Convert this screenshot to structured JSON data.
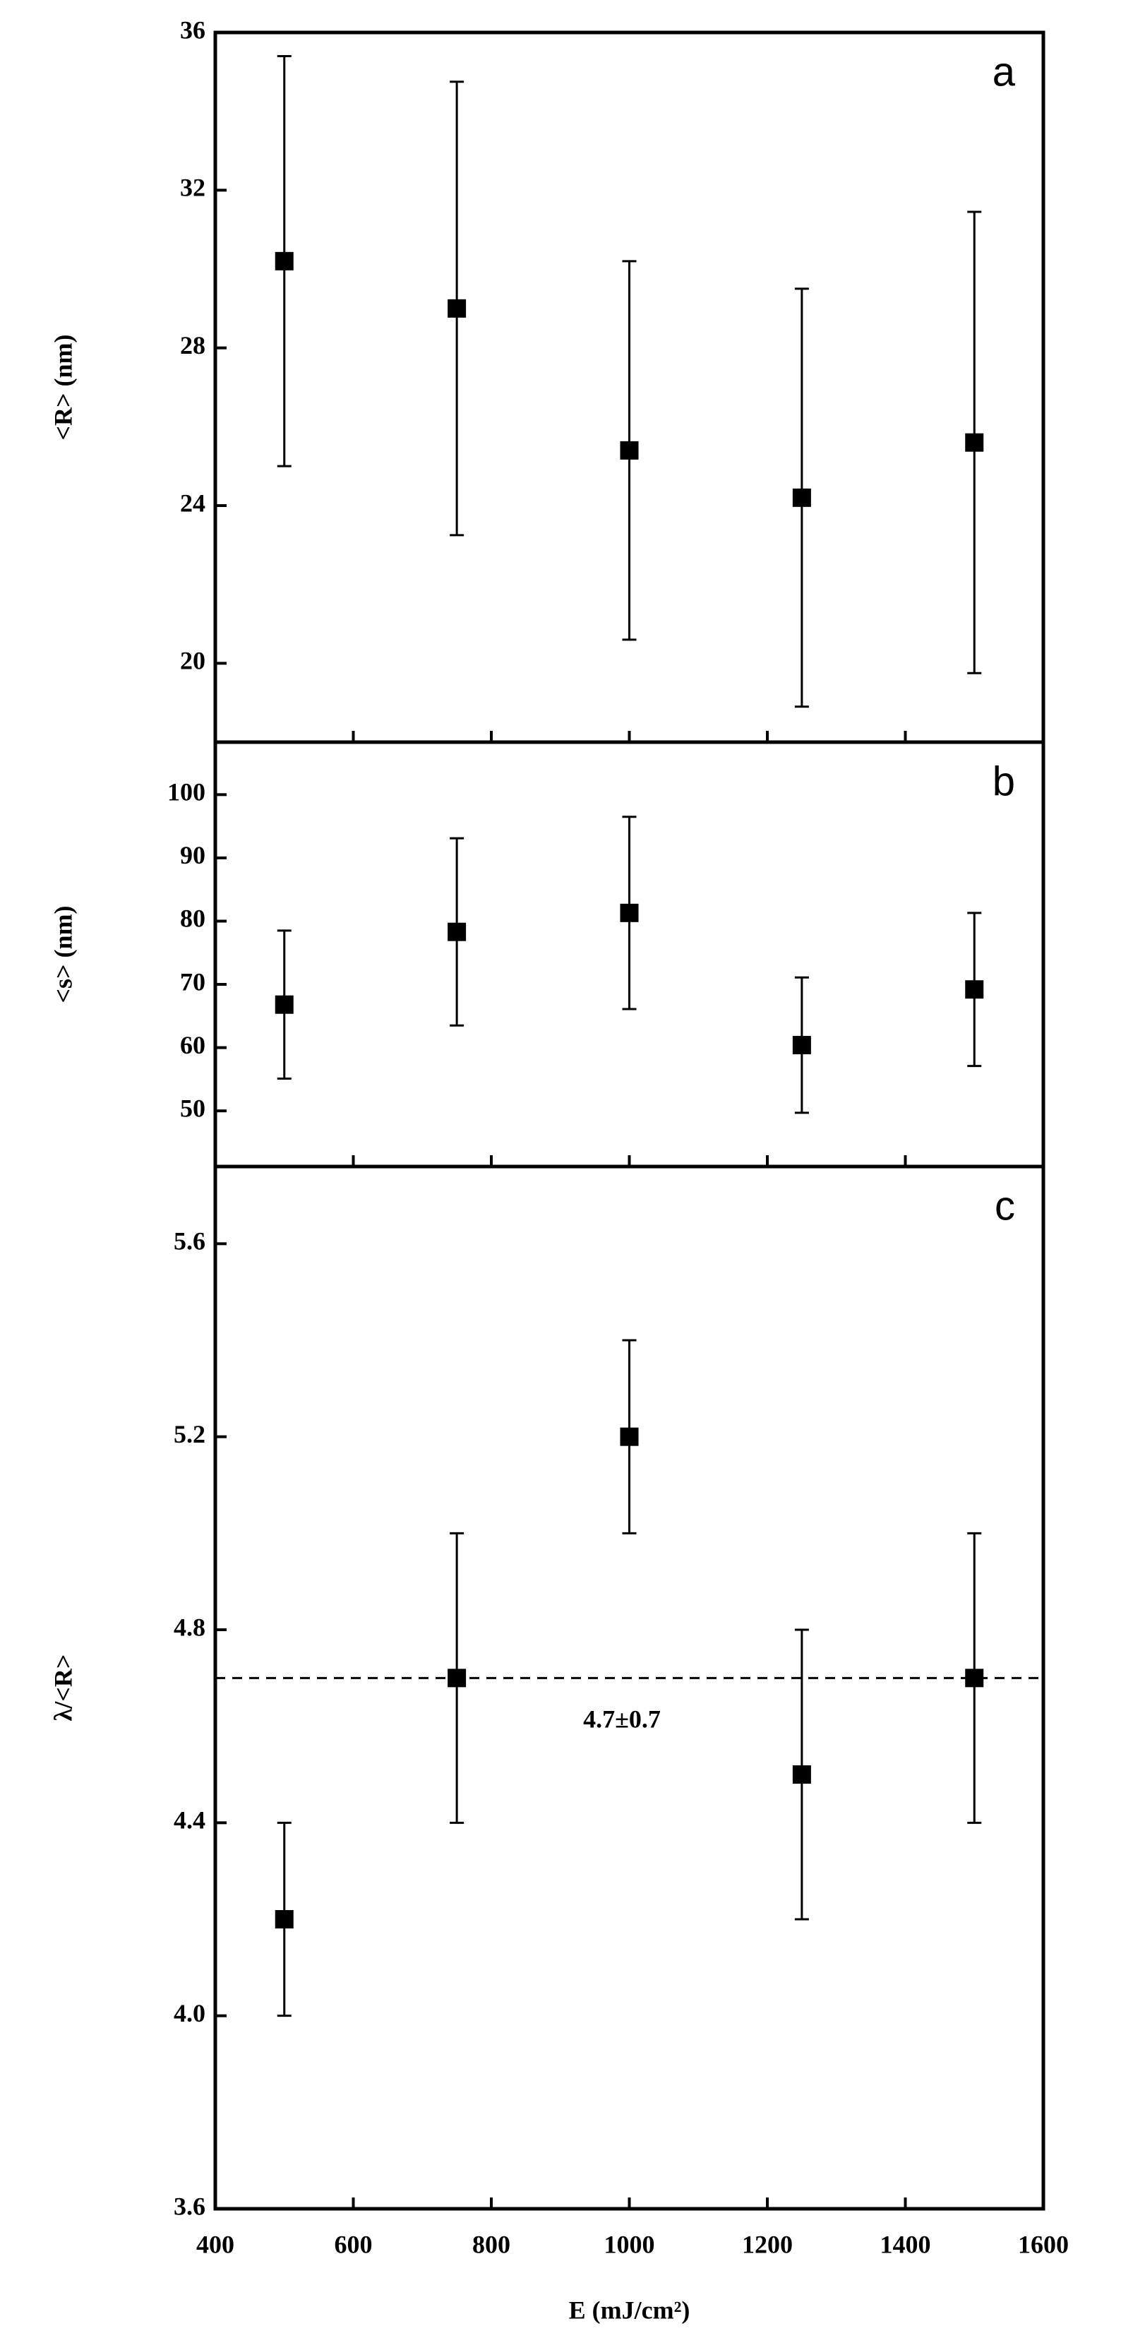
{
  "chart_data": [
    {
      "type": "scatter",
      "ylabel": "<R> (nm)",
      "label": "a",
      "color": "#000000",
      "x": [
        500,
        750,
        1000,
        1250,
        1500
      ],
      "values": [
        30.2,
        29.0,
        25.4,
        24.2,
        25.6
      ],
      "errors": [
        5.2,
        5.75,
        4.8,
        5.3,
        5.85
      ],
      "xlim": [
        400,
        1600
      ],
      "xticks": [
        400,
        600,
        800,
        1000,
        1200,
        1400,
        1600
      ],
      "ylim": [
        18,
        36
      ],
      "yticks": [
        20,
        24,
        28,
        32,
        36
      ]
    },
    {
      "type": "scatter",
      "ylabel": "<s> (nm)",
      "label": "b",
      "color": "#000000",
      "x": [
        500,
        750,
        1000,
        1250,
        1500
      ],
      "values": [
        66.8,
        78.3,
        81.3,
        60.4,
        69.2
      ],
      "errors": [
        11.7,
        14.8,
        15.2,
        10.7,
        12.1
      ],
      "xlim": [
        400,
        1600
      ],
      "xticks": [
        400,
        600,
        800,
        1000,
        1200,
        1400,
        1600
      ],
      "ylim": [
        41.2,
        108.3
      ],
      "yticks": [
        50,
        60,
        70,
        80,
        90,
        100
      ]
    },
    {
      "type": "scatter",
      "ylabel": "λ/<R>",
      "xlabel": "E (mJ/cm²)",
      "label": "c",
      "color": "#000000",
      "x": [
        500,
        750,
        1000,
        1250,
        1500
      ],
      "values": [
        4.2,
        4.7,
        5.2,
        4.5,
        4.7
      ],
      "errors": [
        0.2,
        0.3,
        0.2,
        0.3,
        0.3
      ],
      "hline": 4.7,
      "annotation": "4.7±0.7",
      "xlim": [
        400,
        1600
      ],
      "xticks": [
        400,
        600,
        800,
        1000,
        1200,
        1400,
        1600
      ],
      "ylim": [
        3.6,
        5.76
      ],
      "yticks": [
        3.6,
        {
          "value": 4,
          "label": "4.0"
        },
        4.4,
        4.8,
        5.2,
        5.6
      ]
    }
  ]
}
